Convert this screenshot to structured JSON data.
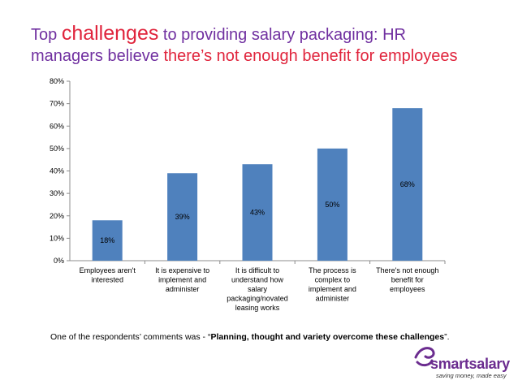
{
  "title": {
    "part1": "Top",
    "part2": "challenges",
    "part3": "to providing salary packaging: HR",
    "part4": "managers believe",
    "part5": "there’s not enough benefit for employees"
  },
  "comment": {
    "prefix": "One of the respondents’ comments was - “",
    "quote": "Planning, thought and variety overcome these challenges",
    "suffix": "”."
  },
  "logo": {
    "name": "smartsalary",
    "tagline": "saving money, made easy"
  },
  "colors": {
    "bar": "#4f81bd",
    "title_purple": "#7030a0",
    "title_red": "#e0243c",
    "logo_purple": "#6b2c8f"
  },
  "chart_data": {
    "type": "bar",
    "categories": [
      [
        "Employees aren't",
        "interested"
      ],
      [
        "It is expensive to",
        "implement and",
        "administer"
      ],
      [
        "It is difficult to",
        "understand how",
        "salary",
        "packaging/novated",
        "leasing works"
      ],
      [
        "The process is",
        "complex to",
        "implement and",
        "administer"
      ],
      [
        "There's not enough",
        "benefit for",
        "employees"
      ]
    ],
    "values": [
      18,
      39,
      43,
      50,
      68
    ],
    "data_labels": [
      "18%",
      "39%",
      "43%",
      "50%",
      "68%"
    ],
    "ylim": [
      0,
      80
    ],
    "yticks": [
      0,
      10,
      20,
      30,
      40,
      50,
      60,
      70,
      80
    ],
    "ytick_labels": [
      "0%",
      "10%",
      "20%",
      "30%",
      "40%",
      "50%",
      "60%",
      "70%",
      "80%"
    ],
    "grid": false,
    "legend": "none"
  }
}
